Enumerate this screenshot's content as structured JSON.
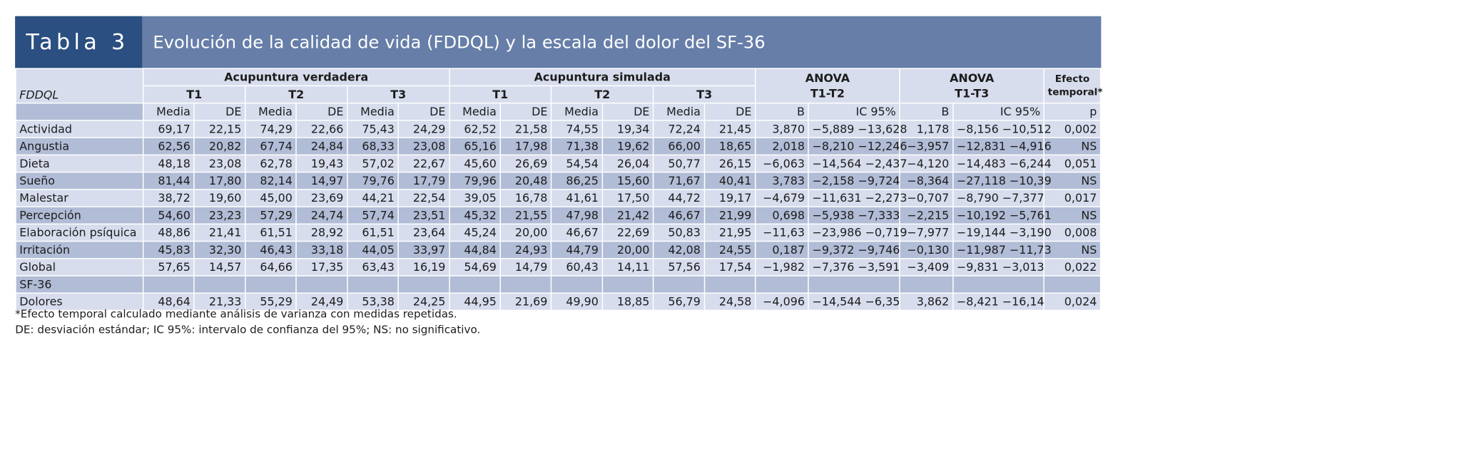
{
  "header": {
    "label": "Tabla 3",
    "title": "Evolución de la calidad de vida (FDDQL) y la escala del dolor del SF-36"
  },
  "columns": {
    "group_verdadera": "Acupuntura verdadera",
    "group_simulada": "Acupuntura simulada",
    "anova1_a": "ANOVA",
    "anova1_b": "T1-T2",
    "anova2_a": "ANOVA",
    "anova2_b": "T1-T3",
    "efecto_a": "Efecto",
    "efecto_b": "temporal*",
    "row_label": "FDDQL",
    "t1": "T1",
    "t2": "T2",
    "t3": "T3",
    "media": "Media",
    "de": "DE",
    "b": "B",
    "ic": "IC 95%",
    "p": "p"
  },
  "rows": [
    {
      "label": "Actividad",
      "cells": [
        "69,17",
        "22,15",
        "74,29",
        "22,66",
        "75,43",
        "24,29",
        "62,52",
        "21,58",
        "74,55",
        "19,34",
        "72,24",
        "21,45",
        "3,870",
        "−5,889 −13,628",
        "1,178",
        "−8,156 −10,512",
        "0,002"
      ]
    },
    {
      "label": "Angustia",
      "cells": [
        "62,56",
        "20,82",
        "67,74",
        "24,84",
        "68,33",
        "23,08",
        "65,16",
        "17,98",
        "71,38",
        "19,62",
        "66,00",
        "18,65",
        "2,018",
        "−8,210 −12,246",
        "−3,957",
        "−12,831 −4,916",
        "NS"
      ]
    },
    {
      "label": "Dieta",
      "cells": [
        "48,18",
        "23,08",
        "62,78",
        "19,43",
        "57,02",
        "22,67",
        "45,60",
        "26,69",
        "54,54",
        "26,04",
        "50,77",
        "26,15",
        "−6,063",
        "−14,564 −2,437",
        "−4,120",
        "−14,483 −6,244",
        "0,051"
      ]
    },
    {
      "label": "Sueño",
      "cells": [
        "81,44",
        "17,80",
        "82,14",
        "14,97",
        "79,76",
        "17,79",
        "79,96",
        "20,48",
        "86,25",
        "15,60",
        "71,67",
        "40,41",
        "3,783",
        "−2,158 −9,724",
        "−8,364",
        "−27,118 −10,39",
        "NS"
      ]
    },
    {
      "label": "Malestar",
      "cells": [
        "38,72",
        "19,60",
        "45,00",
        "23,69",
        "44,21",
        "22,54",
        "39,05",
        "16,78",
        "41,61",
        "17,50",
        "44,72",
        "19,17",
        "−4,679",
        "−11,631 −2,273",
        "−0,707",
        "−8,790 −7,377",
        "0,017"
      ]
    },
    {
      "label": "Percepción",
      "cells": [
        "54,60",
        "23,23",
        "57,29",
        "24,74",
        "57,74",
        "23,51",
        "45,32",
        "21,55",
        "47,98",
        "21,42",
        "46,67",
        "21,99",
        "0,698",
        "−5,938 −7,333",
        "−2,215",
        "−10,192 −5,761",
        "NS"
      ]
    },
    {
      "label": "Elaboración psíquica",
      "cells": [
        "48,86",
        "21,41",
        "61,51",
        "28,92",
        "61,51",
        "23,64",
        "45,24",
        "20,00",
        "46,67",
        "22,69",
        "50,83",
        "21,95",
        "−11,63",
        "−23,986 −0,719",
        "−7,977",
        "−19,144 −3,190",
        "0,008"
      ]
    },
    {
      "label": "Irritación",
      "cells": [
        "45,83",
        "32,30",
        "46,43",
        "33,18",
        "44,05",
        "33,97",
        "44,84",
        "24,93",
        "44,79",
        "20,00",
        "42,08",
        "24,55",
        "0,187",
        "−9,372 −9,746",
        "−0,130",
        "−11,987 −11,73",
        "NS"
      ]
    },
    {
      "label": "Global",
      "cells": [
        "57,65",
        "14,57",
        "64,66",
        "17,35",
        "63,43",
        "16,19",
        "54,69",
        "14,79",
        "60,43",
        "14,11",
        "57,56",
        "17,54",
        "−1,982",
        "−7,376 −3,591",
        "−3,409",
        "−9,831 −3,013",
        "0,022"
      ]
    },
    {
      "label": "SF-36",
      "cells": [
        "",
        "",
        "",
        "",
        "",
        "",
        "",
        "",
        "",
        "",
        "",
        "",
        "",
        "",
        "",
        "",
        ""
      ]
    },
    {
      "label": "Dolores",
      "cells": [
        "48,64",
        "21,33",
        "55,29",
        "24,49",
        "53,38",
        "24,25",
        "44,95",
        "21,69",
        "49,90",
        "18,85",
        "56,79",
        "24,58",
        "−4,096",
        "−14,544 −6,35",
        "3,862",
        "−8,421 −16,14",
        "0,024"
      ]
    }
  ],
  "notes": [
    "*Efecto temporal calculado mediante análisis de varianza con medidas repetidas.",
    "DE: desviación estándar; IC 95%: intervalo de confianza del 95%; NS: no significativo."
  ]
}
